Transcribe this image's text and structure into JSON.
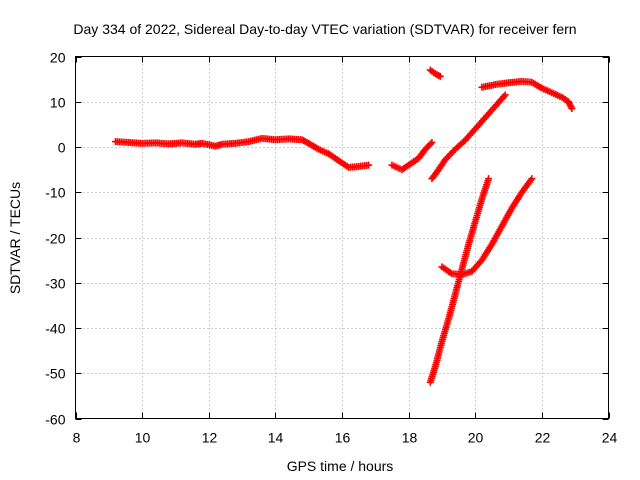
{
  "chart_data": {
    "type": "scatter",
    "title": "Day 334 of 2022, Sidereal Day-to-day VTEC variation (SDTVAR) for receiver fern",
    "xlabel": "GPS time / hours",
    "ylabel": "SDTVAR / TECUs",
    "xlim": [
      8,
      24
    ],
    "ylim": [
      -60,
      20
    ],
    "x_ticks": [
      8,
      10,
      12,
      14,
      16,
      18,
      20,
      22,
      24
    ],
    "y_ticks": [
      -60,
      -50,
      -40,
      -30,
      -20,
      -10,
      0,
      10,
      20
    ],
    "x_tick_labels": [
      "8",
      "10",
      "12",
      "14",
      "16",
      "18",
      "20",
      "22",
      "24"
    ],
    "y_tick_labels": [
      "-60",
      "-50",
      "-40",
      "-30",
      "-20",
      "-10",
      "0",
      "10",
      "20"
    ],
    "grid": true,
    "marker": "plus",
    "color": "#ff0000",
    "series": [
      {
        "points": [
          [
            9.2,
            1.2
          ],
          [
            9.6,
            1.0
          ],
          [
            10.0,
            0.8
          ],
          [
            10.4,
            0.9
          ],
          [
            10.8,
            0.7
          ],
          [
            11.2,
            0.9
          ],
          [
            11.6,
            0.6
          ],
          [
            11.8,
            0.8
          ],
          [
            12.2,
            0.2
          ],
          [
            12.4,
            0.6
          ],
          [
            12.8,
            0.8
          ],
          [
            13.2,
            1.2
          ],
          [
            13.6,
            1.9
          ],
          [
            14.0,
            1.6
          ],
          [
            14.4,
            1.8
          ],
          [
            14.8,
            1.6
          ],
          [
            15.0,
            0.8
          ],
          [
            15.3,
            -0.5
          ],
          [
            15.6,
            -1.5
          ],
          [
            15.9,
            -3.0
          ],
          [
            16.2,
            -4.5
          ],
          [
            16.5,
            -4.3
          ],
          [
            16.8,
            -4.0
          ]
        ]
      },
      {
        "points": [
          [
            17.5,
            -4.0
          ],
          [
            17.8,
            -5.0
          ],
          [
            18.0,
            -4.0
          ],
          [
            18.3,
            -2.5
          ],
          [
            18.5,
            -0.5
          ],
          [
            18.7,
            1.0
          ]
        ]
      },
      {
        "points": [
          [
            18.65,
            17.0
          ],
          [
            18.8,
            16.2
          ],
          [
            18.95,
            15.6
          ]
        ]
      },
      {
        "points": [
          [
            18.7,
            -7.0
          ],
          [
            18.9,
            -5.0
          ],
          [
            19.1,
            -2.8
          ],
          [
            19.4,
            -0.5
          ],
          [
            19.7,
            1.5
          ],
          [
            20.0,
            4.0
          ],
          [
            20.3,
            6.5
          ],
          [
            20.6,
            9.0
          ],
          [
            20.9,
            11.5
          ]
        ]
      },
      {
        "points": [
          [
            20.2,
            13.2
          ],
          [
            20.6,
            13.8
          ],
          [
            21.0,
            14.2
          ],
          [
            21.4,
            14.5
          ],
          [
            21.7,
            14.3
          ],
          [
            22.0,
            13.0
          ],
          [
            22.3,
            12.0
          ],
          [
            22.6,
            11.0
          ],
          [
            22.8,
            10.0
          ],
          [
            22.9,
            8.5
          ]
        ]
      },
      {
        "points": [
          [
            18.65,
            -52.0
          ],
          [
            18.8,
            -48.5
          ],
          [
            19.0,
            -43.0
          ],
          [
            19.2,
            -38.0
          ],
          [
            19.4,
            -32.5
          ],
          [
            19.6,
            -27.0
          ],
          [
            19.8,
            -21.5
          ],
          [
            20.0,
            -16.5
          ],
          [
            20.2,
            -11.5
          ],
          [
            20.4,
            -7.0
          ]
        ]
      },
      {
        "points": [
          [
            19.0,
            -26.5
          ],
          [
            19.3,
            -28.0
          ],
          [
            19.6,
            -28.2
          ],
          [
            19.9,
            -27.5
          ],
          [
            20.2,
            -25.0
          ],
          [
            20.5,
            -21.5
          ],
          [
            20.8,
            -17.5
          ],
          [
            21.1,
            -13.5
          ],
          [
            21.4,
            -10.0
          ],
          [
            21.7,
            -7.0
          ]
        ]
      }
    ]
  }
}
